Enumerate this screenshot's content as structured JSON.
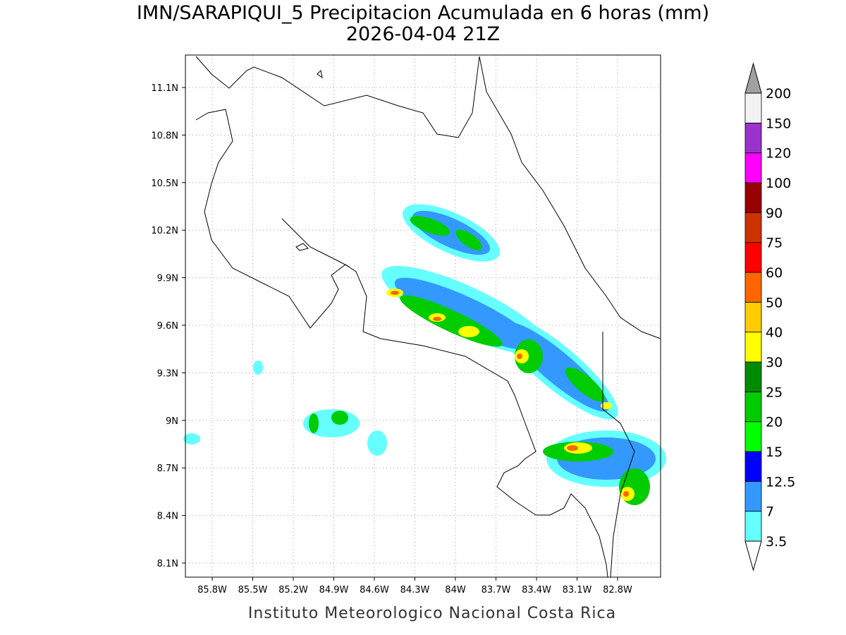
{
  "header": {
    "title": "IMN/SARAPIQUI_5 Precipitacion Acumulada en 6 horas (mm)",
    "subtitle": "2026-04-04 21Z"
  },
  "map": {
    "lat_ticks": [
      "11.1N",
      "10.8N",
      "10.5N",
      "10.2N",
      "9.9N",
      "9.6N",
      "9.3N",
      "9N",
      "8.7N",
      "8.4N",
      "8.1N"
    ],
    "lon_ticks": [
      "85.8W",
      "85.5W",
      "85.2W",
      "84.9W",
      "84.6W",
      "84.3W",
      "84W",
      "83.7W",
      "83.4W",
      "83.1W",
      "82.8W"
    ]
  },
  "colorbar": {
    "levels": [
      3.5,
      7,
      12.5,
      15,
      20,
      25,
      30,
      40,
      50,
      60,
      75,
      90,
      100,
      120,
      150,
      200
    ],
    "colors": [
      "#66ffff",
      "#3399ff",
      "#0000ff",
      "#00ff00",
      "#00cc00",
      "#008c00",
      "#ffff00",
      "#ffcc00",
      "#ff6600",
      "#ff0000",
      "#cc3300",
      "#990000",
      "#ff00ff",
      "#9933cc",
      "#f2f2f2"
    ],
    "over_color": "#a0a0a0",
    "under_color": "#ffffff"
  },
  "footer": {
    "credit": "Instituto Meteorologico Nacional Costa Rica"
  }
}
